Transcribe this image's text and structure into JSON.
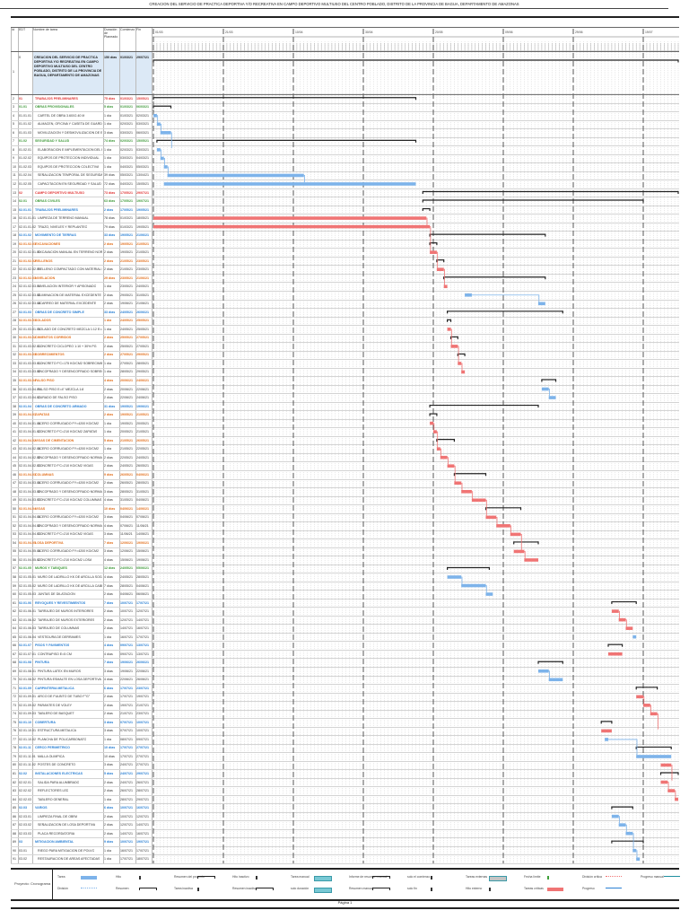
{
  "title": "CREACION DEL SERVICIO DE PRACTICA DEPORTIVA Y/O RECREATIVA EN CAMPO DEPORTIVO MULTIUSO DEL CENTRO POBLADO, DISTRITO DE LA PROVINCIA DE BAGUA, DEPARTAMENTO DE AMAZONAS",
  "columns": {
    "id": "Id",
    "edt": "EDT",
    "name": "Nombre de tarea",
    "duration": "Duración de Planeado",
    "start": "Comienzo",
    "end": "Fin"
  },
  "project": {
    "id": "1",
    "edt": "0",
    "name": "CREACION DEL SERVICIO DE PRACTICA DEPORTIVA Y/O RECREATIVA EN CAMPO DEPORTIVO MULTIUSO DEL CENTRO POBLADO, DISTRITO DE LA PROVINCIA DE BAGUA, DEPARTAMENTO DE AMAZONAS",
    "duration": "150 días",
    "start": "01/03/21",
    "end": "29/07/21",
    "bar": [
      0,
      150
    ]
  },
  "timeline": {
    "major_labels": [
      "01/03",
      "21/03",
      "10/04",
      "30/04",
      "20/05",
      "09/06",
      "29/06",
      "19/07"
    ],
    "range_days": [
      0,
      150
    ]
  },
  "colors": {
    "task": "#7db3ea",
    "critical": "#f07474",
    "summary": "#222222",
    "summary_red": "#e03434",
    "summary_green": "#3f9a3a",
    "summary_blue": "#2b80d4",
    "summary_orange": "#e2701e",
    "project_bg": "#dce9f6"
  },
  "rows": [
    [
      "2",
      "01",
      "TRABAJOS PRELIMINARES",
      "75 días",
      "01/03/21",
      "15/05/21",
      "sr",
      0,
      75
    ],
    [
      "3",
      "01.01",
      "OBRAS PROVISIONALES",
      "5 días",
      "01/03/21",
      "06/03/21",
      "sg",
      0,
      5
    ],
    [
      "4",
      "01.01.01",
      "CARTEL DE OBRA 3.60X2.40 M",
      "1 día",
      "01/03/21",
      "02/03/21",
      "t",
      0,
      1
    ],
    [
      "5",
      "01.01.02",
      "ALMACEN, OFICINA Y CASETA DE GUARDIANIA",
      "1 día",
      "02/03/21",
      "03/03/21",
      "t",
      1,
      2
    ],
    [
      "6",
      "01.01.03",
      "MOVILIZACION Y DESMOVILIZACION DE EQUIPOS",
      "3 días",
      "03/03/21",
      "06/03/21",
      "t",
      2,
      5
    ],
    [
      "7",
      "01.02",
      "SEGURIDAD Y SALUD",
      "74 días",
      "02/03/21",
      "15/05/21",
      "sg",
      1,
      75
    ],
    [
      "8",
      "01.02.01",
      "ELABORACION E IMPLEMENTACION DEL PLAN DE SST",
      "1 día",
      "02/03/21",
      "03/03/21",
      "t",
      1,
      2
    ],
    [
      "9",
      "01.02.02",
      "EQUIPOS DE PROTECCION INDIVIDUAL",
      "1 día",
      "03/03/21",
      "04/03/21",
      "t",
      2,
      3
    ],
    [
      "10",
      "01.02.03",
      "EQUIPOS DE PROTECCION COLECTIVA",
      "1 día",
      "04/03/21",
      "05/03/21",
      "t",
      3,
      4
    ],
    [
      "11",
      "01.02.04",
      "SEÑALIZACION TEMPORAL DE SEGURIDAD",
      "39 días",
      "05/03/21",
      "13/04/21",
      "t",
      4,
      43
    ],
    [
      "12",
      "01.02.05",
      "CAPACITACION EN SEGURIDAD Y SALUD",
      "72 días",
      "04/03/21",
      "15/05/21",
      "t",
      3,
      75
    ],
    [
      "13",
      "02",
      "CAMPO DEPORTIVO MULTIUSO",
      "73 días",
      "17/05/21",
      "29/07/21",
      "sr",
      77,
      150
    ],
    [
      "14",
      "02.01",
      "OBRAS CIVILES",
      "63 días",
      "17/05/21",
      "19/07/21",
      "sg",
      77,
      140
    ],
    [
      "15",
      "02.01.01",
      "TRABAJOS PRELIMINARES",
      "2 días",
      "17/05/21",
      "19/05/21",
      "sb",
      77,
      79
    ],
    [
      "16",
      "02.01.01.01",
      "LIMPIEZA DE TERRENO MANUAL",
      "78 días",
      "01/03/21",
      "18/05/21",
      "c",
      0,
      78
    ],
    [
      "17",
      "02.01.01.02",
      "TRAZO, NIVELES Y REPLANTEO",
      "79 días",
      "01/03/21",
      "19/05/21",
      "c",
      0,
      79
    ],
    [
      "18",
      "02.01.02",
      "MOVIMIENTO DE TIERRAS",
      "33 días",
      "19/05/21",
      "21/06/21",
      "sb",
      79,
      112
    ],
    [
      "19",
      "02.01.02.01",
      "EXCAVACIONES",
      "2 días",
      "19/05/21",
      "21/05/21",
      "so",
      79,
      81
    ],
    [
      "20",
      "02.01.02.01.01",
      "EXCAVACION MANUAL EN TERRENO NORMAL",
      "2 días",
      "19/05/21",
      "21/05/21",
      "c",
      79,
      81
    ],
    [
      "21",
      "02.01.02.02",
      "RELLENOS",
      "2 días",
      "21/05/21",
      "23/05/21",
      "so",
      81,
      83
    ],
    [
      "22",
      "02.01.02.02.01",
      "RELLENO COMPACTADO CON MATERIAL PROPIO",
      "2 días",
      "21/05/21",
      "23/05/21",
      "c",
      81,
      83
    ],
    [
      "23",
      "02.01.02.03",
      "NIVELACION",
      "29 días",
      "23/05/21",
      "21/06/21",
      "so",
      83,
      112
    ],
    [
      "24",
      "02.01.02.03.01",
      "NIVELACION INTERIOR Y APISONADO",
      "1 día",
      "23/05/21",
      "24/05/21",
      "c",
      83,
      84
    ],
    [
      "25",
      "02.01.02.03.02",
      "ELIMINACION DE MATERIAL EXCEDENTE",
      "2 días",
      "29/05/21",
      "31/05/21",
      "t",
      89,
      91
    ],
    [
      "26",
      "02.01.02.03.03",
      "ACARREO DE MATERIAL EXCEDENTE",
      "2 días",
      "19/06/21",
      "21/06/21",
      "t",
      110,
      112
    ],
    [
      "27",
      "02.01.03",
      "OBRAS DE CONCRETO SIMPLE",
      "33 días",
      "24/05/21",
      "26/06/21",
      "sb",
      84,
      117
    ],
    [
      "28",
      "02.01.03.01",
      "SOLADOS",
      "1 día",
      "24/05/21",
      "25/05/21",
      "so",
      84,
      85
    ],
    [
      "29",
      "02.01.03.01.01",
      "SOLADO DE CONCRETO MEZCLA 1:12 E=4\"",
      "1 día",
      "24/05/21",
      "25/05/21",
      "c",
      84,
      85
    ],
    [
      "30",
      "02.01.03.02",
      "CIMIENTOS CORRIDOS",
      "2 días",
      "25/05/21",
      "27/05/21",
      "so",
      85,
      87
    ],
    [
      "31",
      "02.01.03.02.01",
      "CONCRETO CICLOPEO 1:10 + 30% PG",
      "2 días",
      "25/05/21",
      "27/05/21",
      "c",
      85,
      87
    ],
    [
      "32",
      "02.01.03.03",
      "SOBRECIMIENTOS",
      "2 días",
      "27/05/21",
      "29/05/21",
      "so",
      87,
      89
    ],
    [
      "33",
      "02.01.03.03.01",
      "CONCRETO F'C=175 KG/CM2 SOBRECIMIENTO",
      "1 día",
      "27/05/21",
      "28/05/21",
      "c",
      87,
      88
    ],
    [
      "34",
      "02.01.03.03.02",
      "ENCOFRADO Y DESENCOFRADO SOBRECIMIENTO",
      "1 día",
      "28/05/21",
      "29/05/21",
      "c",
      88,
      89
    ],
    [
      "35",
      "02.01.03.04",
      "FALSO PISO",
      "4 días",
      "20/06/21",
      "24/06/21",
      "so",
      111,
      115
    ],
    [
      "36",
      "02.01.03.04.01",
      "FALSO PISO E=4\" MEZCLA 1:8",
      "2 días",
      "20/06/21",
      "22/06/21",
      "t",
      111,
      113
    ],
    [
      "37",
      "02.01.03.04.02",
      "CURADO DE FALSO PISO",
      "2 días",
      "22/06/21",
      "24/06/21",
      "t",
      113,
      115
    ],
    [
      "38",
      "02.01.04",
      "OBRAS DE CONCRETO ARMADO",
      "31 días",
      "19/05/21",
      "19/06/21",
      "sb",
      79,
      110
    ],
    [
      "39",
      "02.01.04.01",
      "ZAPATAS",
      "2 días",
      "19/05/21",
      "21/05/21",
      "so",
      79,
      81
    ],
    [
      "40",
      "02.01.04.01.01",
      "ACERO CORRUGADO FY=4200 KG/CM2",
      "1 día",
      "19/05/21",
      "20/05/21",
      "c",
      79,
      80
    ],
    [
      "41",
      "02.01.04.01.02",
      "CONCRETO F'C=210 KG/CM2 ZAPATAS",
      "1 día",
      "20/05/21",
      "21/05/21",
      "c",
      80,
      81
    ],
    [
      "42",
      "02.01.04.02",
      "VIGAS DE CIMENTACION",
      "5 días",
      "21/05/21",
      "26/05/21",
      "so",
      81,
      86
    ],
    [
      "43",
      "02.01.04.02.01",
      "ACERO CORRUGADO FY=4200 KG/CM2",
      "1 día",
      "21/05/21",
      "22/05/21",
      "c",
      81,
      82
    ],
    [
      "44",
      "02.01.04.02.02",
      "ENCOFRADO Y DESENCOFRADO NORMAL",
      "2 días",
      "22/05/21",
      "24/05/21",
      "c",
      82,
      84
    ],
    [
      "45",
      "02.01.04.02.03",
      "CONCRETO F'C=210 KG/CM2 VIGAS",
      "2 días",
      "24/05/21",
      "26/05/21",
      "c",
      84,
      86
    ],
    [
      "46",
      "02.01.04.03",
      "COLUMNAS",
      "9 días",
      "26/05/21",
      "04/06/21",
      "so",
      86,
      95
    ],
    [
      "47",
      "02.01.04.03.01",
      "ACERO CORRUGADO FY=4200 KG/CM2",
      "2 días",
      "26/05/21",
      "28/05/21",
      "c",
      86,
      88
    ],
    [
      "48",
      "02.01.04.03.02",
      "ENCOFRADO Y DESENCOFRADO NORMAL",
      "3 días",
      "28/05/21",
      "31/05/21",
      "c",
      88,
      91
    ],
    [
      "49",
      "02.01.04.03.03",
      "CONCRETO F'C=210 KG/CM2 COLUMNAS",
      "4 días",
      "31/05/21",
      "04/06/21",
      "c",
      91,
      95
    ],
    [
      "50",
      "02.01.04.04",
      "VIGAS",
      "10 días",
      "04/06/21",
      "14/06/21",
      "so",
      95,
      105
    ],
    [
      "51",
      "02.01.04.04.01",
      "ACERO CORRUGADO FY=4200 KG/CM2",
      "3 días",
      "04/06/21",
      "07/06/21",
      "c",
      95,
      98
    ],
    [
      "52",
      "02.01.04.04.02",
      "ENCOFRADO Y DESENCOFRADO NORMAL",
      "4 días",
      "07/06/21",
      "11/06/21",
      "c",
      98,
      102
    ],
    [
      "53",
      "02.01.04.04.03",
      "CONCRETO F'C=210 KG/CM2 VIGAS",
      "3 días",
      "11/06/21",
      "14/06/21",
      "c",
      102,
      105
    ],
    [
      "54",
      "02.01.04.05",
      "LOSA DEPORTIVA",
      "7 días",
      "12/06/21",
      "19/06/21",
      "so",
      103,
      110
    ],
    [
      "55",
      "02.01.04.05.01",
      "ACERO CORRUGADO FY=4200 KG/CM2",
      "3 días",
      "12/06/21",
      "15/06/21",
      "c",
      103,
      106
    ],
    [
      "56",
      "02.01.04.05.02",
      "CONCRETO F'C=210 KG/CM2 LOSA",
      "4 días",
      "15/06/21",
      "19/06/21",
      "c",
      106,
      110
    ],
    [
      "57",
      "02.01.05",
      "MUROS Y TABIQUES",
      "12 días",
      "24/05/21",
      "05/06/21",
      "sg",
      84,
      96
    ],
    [
      "58",
      "02.01.05.01",
      "MURO DE LADRILLO KK DE ARCILLA SOGA",
      "4 días",
      "24/05/21",
      "28/05/21",
      "t",
      84,
      88
    ],
    [
      "59",
      "02.01.05.02",
      "MURO DE LADRILLO KK DE ARCILLA CABEZA",
      "7 días",
      "28/05/21",
      "04/06/21",
      "t",
      88,
      95
    ],
    [
      "60",
      "02.01.05.03",
      "JUNTAS DE DILATACION",
      "2 días",
      "04/06/21",
      "06/06/21",
      "t",
      95,
      97
    ],
    [
      "61",
      "02.01.06",
      "REVOQUES Y REVESTIMIENTOS",
      "7 días",
      "10/07/21",
      "17/07/21",
      "sb",
      131,
      138
    ],
    [
      "62",
      "02.01.06.01",
      "TARRAJEO DE MUROS INTERIORES",
      "2 días",
      "10/07/21",
      "12/07/21",
      "c",
      131,
      133
    ],
    [
      "63",
      "02.01.06.02",
      "TARRAJEO DE MUROS EXTERIORES",
      "2 días",
      "12/07/21",
      "14/07/21",
      "c",
      133,
      135
    ],
    [
      "64",
      "02.01.06.03",
      "TARRAJEO DE COLUMNAS",
      "2 días",
      "14/07/21",
      "16/07/21",
      "c",
      135,
      137
    ],
    [
      "65",
      "02.01.06.04",
      "VESTIDURA DE DERRAMES",
      "1 día",
      "16/07/21",
      "17/07/21",
      "t",
      137,
      138
    ],
    [
      "66",
      "02.01.07",
      "PISOS Y PAVIMENTOS",
      "4 días",
      "09/07/21",
      "13/07/21",
      "sb",
      130,
      134
    ],
    [
      "67",
      "02.01.07.01",
      "CONTRAPISO E=5 CM",
      "4 días",
      "09/07/21",
      "13/07/21",
      "c",
      130,
      134
    ],
    [
      "68",
      "02.01.08",
      "PINTURA",
      "7 días",
      "19/06/21",
      "26/06/21",
      "sb",
      110,
      117
    ],
    [
      "69",
      "02.01.08.01",
      "PINTURA LATEX EN MUROS",
      "3 días",
      "19/06/21",
      "22/06/21",
      "t",
      110,
      113
    ],
    [
      "70",
      "02.01.08.02",
      "PINTURA ESMALTE EN LOSA DEPORTIVA",
      "4 días",
      "22/06/21",
      "26/06/21",
      "t",
      113,
      117
    ],
    [
      "71",
      "02.01.09",
      "CARPINTERIA METALICA",
      "6 días",
      "17/07/21",
      "23/07/21",
      "sb",
      138,
      144
    ],
    [
      "72",
      "02.01.09.01",
      "ARCO DE FULBITO DE TUBO F°G°",
      "2 días",
      "17/07/21",
      "19/07/21",
      "c",
      138,
      140
    ],
    [
      "73",
      "02.01.09.02",
      "PARANTES DE VOLEY",
      "2 días",
      "19/07/21",
      "21/07/21",
      "c",
      140,
      142
    ],
    [
      "74",
      "02.01.09.03",
      "TABLERO DE BASQUET",
      "2 días",
      "21/07/21",
      "23/07/21",
      "c",
      142,
      144
    ],
    [
      "75",
      "02.01.10",
      "COBERTURA",
      "3 días",
      "07/07/21",
      "10/07/21",
      "sb",
      128,
      131
    ],
    [
      "76",
      "02.01.10.01",
      "ESTRUCTURA METALICA",
      "3 días",
      "07/07/21",
      "10/07/21",
      "c",
      128,
      131
    ],
    [
      "77",
      "02.01.10.02",
      "PLANCHA DE POLICARBONATO",
      "1 día",
      "08/07/21",
      "09/07/21",
      "t",
      129,
      130
    ],
    [
      "78",
      "02.01.11",
      "CERCO PERIMETRICO",
      "10 días",
      "17/07/21",
      "27/07/21",
      "sb",
      138,
      148
    ],
    [
      "79",
      "02.01.11.01",
      "MALLA OLIMPICA",
      "10 días",
      "17/07/21",
      "27/07/21",
      "t",
      138,
      148
    ],
    [
      "80",
      "02.01.11.02",
      "POSTES DE CONCRETO",
      "3 días",
      "24/07/21",
      "27/07/21",
      "c",
      145,
      148
    ],
    [
      "81",
      "02.02",
      "INSTALACIONES ELECTRICAS",
      "5 días",
      "24/07/21",
      "29/07/21",
      "sb",
      145,
      150
    ],
    [
      "82",
      "02.02.01",
      "SALIDA PARA ALUMBRADO",
      "2 días",
      "24/07/21",
      "26/07/21",
      "c",
      145,
      147
    ],
    [
      "83",
      "02.02.02",
      "REFLECTORES LED",
      "2 días",
      "26/07/21",
      "28/07/21",
      "c",
      147,
      149
    ],
    [
      "84",
      "02.02.03",
      "TABLERO GENERAL",
      "1 día",
      "28/07/21",
      "29/07/21",
      "c",
      149,
      150
    ],
    [
      "85",
      "02.03",
      "VARIOS",
      "6 días",
      "10/07/21",
      "16/07/21",
      "sb",
      131,
      137
    ],
    [
      "86",
      "02.03.01",
      "LIMPIEZA FINAL DE OBRA",
      "2 días",
      "10/07/21",
      "12/07/21",
      "t",
      131,
      133
    ],
    [
      "87",
      "02.03.02",
      "SEÑALIZACION DE LOSA DEPORTIVA",
      "2 días",
      "12/07/21",
      "14/07/21",
      "t",
      133,
      135
    ],
    [
      "88",
      "02.03.03",
      "PLACA RECORDATORIA",
      "2 días",
      "14/07/21",
      "16/07/21",
      "t",
      135,
      137
    ],
    [
      "89",
      "03",
      "MITIGACION AMBIENTAL",
      "9 días",
      "10/07/21",
      "19/07/21",
      "sb",
      131,
      140
    ],
    [
      "90",
      "03.01",
      "RIEGO PARA MITIGACION DE POLVO",
      "1 día",
      "16/07/21",
      "17/07/21",
      "t",
      137,
      138
    ],
    [
      "91",
      "03.02",
      "RESTAURACION DE AREAS AFECTADAS",
      "1 día",
      "17/07/21",
      "18/07/21",
      "t",
      138,
      139
    ]
  ],
  "legend": {
    "project_label": "Proyecto: Cronograma",
    "items": [
      {
        "label": "Tarea",
        "swatch": "task"
      },
      {
        "label": "División",
        "swatch": "split"
      },
      {
        "label": "Hito",
        "swatch": "milestone"
      },
      {
        "label": "Resumen",
        "swatch": "summary"
      },
      {
        "label": "Resumen del proyecto",
        "swatch": "project-summary"
      },
      {
        "label": "Tarea inactiva",
        "swatch": "inactive"
      },
      {
        "label": "Hito inactivo",
        "swatch": "inactive-milestone"
      },
      {
        "label": "Resumen inactivo",
        "swatch": "inactive-summary"
      },
      {
        "label": "Tarea manual",
        "swatch": "manual"
      },
      {
        "label": "solo duración",
        "swatch": "duration-only"
      },
      {
        "label": "Informe de resumen manual",
        "swatch": "manual-summary-rollup"
      },
      {
        "label": "Resumen manual",
        "swatch": "manual-summary"
      },
      {
        "label": "solo el comienzo",
        "swatch": "start-only"
      },
      {
        "label": "solo fin",
        "swatch": "finish-only"
      },
      {
        "label": "Tareas externas",
        "swatch": "external"
      },
      {
        "label": "Hito externo",
        "swatch": "external-milestone"
      },
      {
        "label": "Fecha límite",
        "swatch": "deadline"
      },
      {
        "label": "Tareas críticas",
        "swatch": "critical"
      },
      {
        "label": "División crítica",
        "swatch": "critical-split"
      },
      {
        "label": "Progreso",
        "swatch": "progress"
      },
      {
        "label": "Progreso manual",
        "swatch": "manual-progress"
      }
    ]
  },
  "footer": {
    "page": "Página 1"
  }
}
